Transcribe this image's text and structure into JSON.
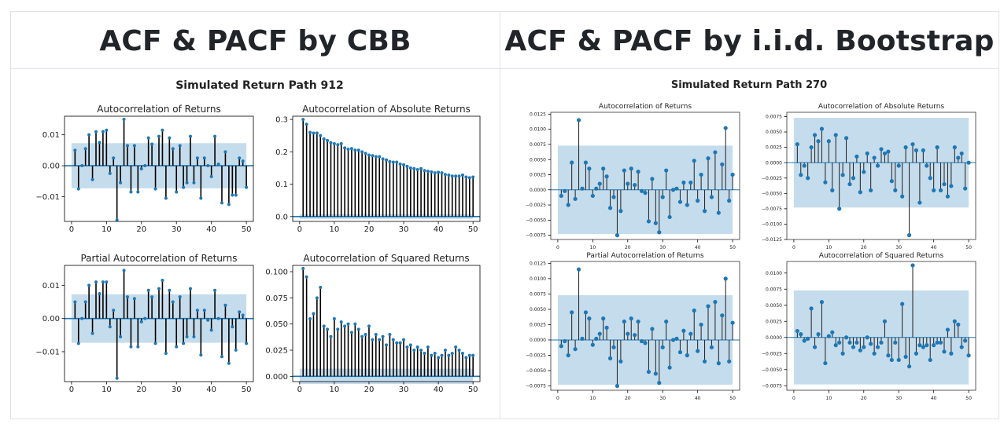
{
  "panels": [
    {
      "title": "ACF & PACF by CBB",
      "suptitle": "Simulated Return Path 912"
    },
    {
      "title": "ACF & PACF by i.i.d. Bootstrap",
      "suptitle": "Simulated Return Path 270"
    }
  ],
  "chart_data": [
    {
      "type": "stem",
      "title": "Autocorrelation of Returns",
      "xlim": [
        -2,
        52
      ],
      "ylim": [
        -0.018,
        0.016
      ],
      "xticks": [
        0,
        10,
        20,
        30,
        40,
        50
      ],
      "yticks": [
        -0.01,
        0.0,
        0.01
      ],
      "ytick_labels": [
        "−0.01",
        "0.00",
        "0.01"
      ],
      "conf_band": [
        -0.0073,
        0.0073
      ],
      "x": [
        1,
        2,
        3,
        4,
        5,
        6,
        7,
        8,
        9,
        10,
        11,
        12,
        13,
        14,
        15,
        16,
        17,
        18,
        19,
        20,
        21,
        22,
        23,
        24,
        25,
        26,
        27,
        28,
        29,
        30,
        31,
        32,
        33,
        34,
        35,
        36,
        37,
        38,
        39,
        40,
        41,
        42,
        43,
        44,
        45,
        46,
        47,
        48,
        49,
        50
      ],
      "values": [
        0.005,
        -0.0075,
        0.0,
        0.0055,
        0.01,
        -0.0045,
        0.011,
        0.0075,
        0.011,
        0.0115,
        -0.0025,
        0.0025,
        -0.0175,
        -0.0055,
        0.015,
        0.0065,
        -0.0085,
        0.0065,
        -0.0085,
        -0.001,
        0.0,
        0.009,
        0.007,
        -0.0075,
        0.0095,
        0.0115,
        -0.0105,
        0.009,
        0.0055,
        -0.0085,
        0.0065,
        -0.007,
        -0.0055,
        0.0095,
        -0.0055,
        0.0025,
        -0.0105,
        0.0025,
        0.0,
        -0.0035,
        0.0095,
        0.0005,
        -0.012,
        0.0045,
        -0.0125,
        -0.0095,
        -0.0095,
        0.0025,
        0.0015,
        -0.007
      ]
    },
    {
      "type": "stem",
      "title": "Autocorrelation of Absolute Returns",
      "xlim": [
        -2,
        52
      ],
      "ylim": [
        -0.015,
        0.31
      ],
      "xticks": [
        0,
        10,
        20,
        30,
        40,
        50
      ],
      "yticks": [
        0.0,
        0.1,
        0.2,
        0.3
      ],
      "ytick_labels": [
        "0.0",
        "0.1",
        "0.2",
        "0.3"
      ],
      "conf_band": [
        -0.0073,
        0.0073
      ],
      "x": [
        1,
        2,
        3,
        4,
        5,
        6,
        7,
        8,
        9,
        10,
        11,
        12,
        13,
        14,
        15,
        16,
        17,
        18,
        19,
        20,
        21,
        22,
        23,
        24,
        25,
        26,
        27,
        28,
        29,
        30,
        31,
        32,
        33,
        34,
        35,
        36,
        37,
        38,
        39,
        40,
        41,
        42,
        43,
        44,
        45,
        46,
        47,
        48,
        49,
        50
      ],
      "values": [
        0.3,
        0.285,
        0.26,
        0.258,
        0.258,
        0.25,
        0.24,
        0.235,
        0.228,
        0.225,
        0.222,
        0.225,
        0.212,
        0.208,
        0.21,
        0.205,
        0.205,
        0.2,
        0.195,
        0.19,
        0.188,
        0.185,
        0.185,
        0.178,
        0.175,
        0.17,
        0.168,
        0.168,
        0.162,
        0.16,
        0.155,
        0.15,
        0.148,
        0.145,
        0.148,
        0.142,
        0.14,
        0.138,
        0.135,
        0.137,
        0.135,
        0.13,
        0.128,
        0.125,
        0.125,
        0.125,
        0.128,
        0.122,
        0.12,
        0.122
      ]
    },
    {
      "type": "stem",
      "title": "Partial Autocorrelation of Returns",
      "xlim": [
        -2,
        52
      ],
      "ylim": [
        -0.019,
        0.016
      ],
      "xticks": [
        0,
        10,
        20,
        30,
        40,
        50
      ],
      "yticks": [
        -0.01,
        0.0,
        0.01
      ],
      "ytick_labels": [
        "−0.01",
        "0.00",
        "0.01"
      ],
      "conf_band": [
        -0.0073,
        0.0073
      ],
      "x": [
        1,
        2,
        3,
        4,
        5,
        6,
        7,
        8,
        9,
        10,
        11,
        12,
        13,
        14,
        15,
        16,
        17,
        18,
        19,
        20,
        21,
        22,
        23,
        24,
        25,
        26,
        27,
        28,
        29,
        30,
        31,
        32,
        33,
        34,
        35,
        36,
        37,
        38,
        39,
        40,
        41,
        42,
        43,
        44,
        45,
        46,
        47,
        48,
        49,
        50
      ],
      "values": [
        0.005,
        -0.0075,
        0.0,
        0.005,
        0.01,
        -0.0045,
        0.011,
        0.0075,
        0.011,
        0.011,
        -0.0025,
        0.0025,
        -0.018,
        -0.0055,
        0.0145,
        0.0065,
        -0.0085,
        0.006,
        -0.0085,
        -0.001,
        0.0,
        0.0085,
        0.0065,
        -0.0075,
        0.009,
        0.0115,
        -0.0105,
        0.0085,
        0.005,
        -0.0085,
        0.0065,
        -0.0075,
        -0.0055,
        0.009,
        -0.0055,
        0.0025,
        -0.011,
        0.0025,
        -0.0005,
        -0.0035,
        0.0085,
        0.0,
        -0.0115,
        0.004,
        -0.0135,
        -0.0025,
        -0.0095,
        0.002,
        0.001,
        -0.0075
      ]
    },
    {
      "type": "stem",
      "title": "Autocorrelation of Squared Returns",
      "xlim": [
        -2,
        52
      ],
      "ylim": [
        -0.005,
        0.106
      ],
      "xticks": [
        0,
        10,
        20,
        30,
        40,
        50
      ],
      "yticks": [
        0.0,
        0.025,
        0.05,
        0.075,
        0.1
      ],
      "ytick_labels": [
        "0.000",
        "0.025",
        "0.050",
        "0.075",
        "0.100"
      ],
      "conf_band": [
        -0.0073,
        0.0073
      ],
      "x": [
        1,
        2,
        3,
        4,
        5,
        6,
        7,
        8,
        9,
        10,
        11,
        12,
        13,
        14,
        15,
        16,
        17,
        18,
        19,
        20,
        21,
        22,
        23,
        24,
        25,
        26,
        27,
        28,
        29,
        30,
        31,
        32,
        33,
        34,
        35,
        36,
        37,
        38,
        39,
        40,
        41,
        42,
        43,
        44,
        45,
        46,
        47,
        48,
        49,
        50
      ],
      "values": [
        0.103,
        0.095,
        0.055,
        0.06,
        0.075,
        0.085,
        0.048,
        0.045,
        0.038,
        0.055,
        0.045,
        0.052,
        0.048,
        0.05,
        0.042,
        0.05,
        0.045,
        0.038,
        0.04,
        0.048,
        0.035,
        0.04,
        0.035,
        0.038,
        0.03,
        0.04,
        0.035,
        0.032,
        0.032,
        0.035,
        0.028,
        0.03,
        0.025,
        0.028,
        0.025,
        0.022,
        0.028,
        0.02,
        0.022,
        0.018,
        0.02,
        0.025,
        0.02,
        0.022,
        0.028,
        0.025,
        0.022,
        0.018,
        0.02,
        0.02
      ]
    },
    {
      "type": "stem",
      "title": "Autocorrelation of Returns",
      "xlim": [
        -2,
        52
      ],
      "ylim": [
        -0.0082,
        0.0128
      ],
      "xticks": [
        0,
        10,
        20,
        30,
        40,
        50
      ],
      "yticks": [
        -0.0075,
        -0.005,
        -0.0025,
        0.0,
        0.0025,
        0.005,
        0.0075,
        0.01,
        0.0125
      ],
      "ytick_labels": [
        "−0.0075",
        "−0.0050",
        "−0.0025",
        "0.0000",
        "0.0025",
        "0.0050",
        "0.0075",
        "0.0100",
        "0.0125"
      ],
      "conf_band": [
        -0.0073,
        0.0073
      ],
      "x": [
        1,
        2,
        3,
        4,
        5,
        6,
        7,
        8,
        9,
        10,
        11,
        12,
        13,
        14,
        15,
        16,
        17,
        18,
        19,
        20,
        21,
        22,
        23,
        24,
        25,
        26,
        27,
        28,
        29,
        30,
        31,
        32,
        33,
        34,
        35,
        36,
        37,
        38,
        39,
        40,
        41,
        42,
        43,
        44,
        45,
        46,
        47,
        48,
        49,
        50
      ],
      "values": [
        -0.001,
        -0.0002,
        -0.0025,
        0.0045,
        -0.0015,
        0.0115,
        0.0002,
        0.0045,
        0.0035,
        -0.001,
        0.0002,
        0.001,
        0.0035,
        0.0022,
        -0.003,
        -0.0012,
        -0.0075,
        -0.0035,
        0.0032,
        0.001,
        0.0035,
        0.0008,
        0.003,
        -0.0002,
        -0.0005,
        -0.0052,
        0.0018,
        -0.0055,
        -0.007,
        -0.0012,
        0.0032,
        -0.0045,
        0.0,
        0.0002,
        -0.002,
        0.0012,
        -0.0025,
        0.0012,
        0.0048,
        -0.0018,
        0.0025,
        -0.0035,
        0.0052,
        -0.0012,
        0.0062,
        -0.0038,
        0.0042,
        0.0102,
        -0.0018,
        0.0025
      ]
    },
    {
      "type": "stem",
      "title": "Autocorrelation of Absolute Returns",
      "xlim": [
        -2,
        52
      ],
      "ylim": [
        -0.0125,
        0.0082
      ],
      "xticks": [
        0,
        10,
        20,
        30,
        40,
        50
      ],
      "yticks": [
        -0.0125,
        -0.01,
        -0.0075,
        -0.005,
        -0.0025,
        0.0,
        0.0025,
        0.005,
        0.0075
      ],
      "ytick_labels": [
        "−0.0125",
        "−0.0100",
        "−0.0075",
        "−0.0050",
        "−0.0025",
        "0.0000",
        "0.0025",
        "0.0050",
        "0.0075"
      ],
      "conf_band": [
        -0.0073,
        0.0073
      ],
      "x": [
        1,
        2,
        3,
        4,
        5,
        6,
        7,
        8,
        9,
        10,
        11,
        12,
        13,
        14,
        15,
        16,
        17,
        18,
        19,
        20,
        21,
        22,
        23,
        24,
        25,
        26,
        27,
        28,
        29,
        30,
        31,
        32,
        33,
        34,
        35,
        36,
        37,
        38,
        39,
        40,
        41,
        42,
        43,
        44,
        45,
        46,
        47,
        48,
        49,
        50
      ],
      "values": [
        0.003,
        -0.002,
        -0.0005,
        -0.0025,
        0.0025,
        0.0045,
        0.0035,
        0.0055,
        -0.0032,
        0.0035,
        -0.0045,
        0.0045,
        -0.0075,
        -0.002,
        0.004,
        -0.0035,
        -0.0025,
        0.001,
        -0.0048,
        -0.0015,
        0.0015,
        -0.0045,
        0.0008,
        -0.0005,
        0.0022,
        0.0015,
        0.0018,
        -0.003,
        -0.0045,
        -0.0005,
        -0.0055,
        0.0025,
        -0.0118,
        0.003,
        0.002,
        -0.0065,
        0.002,
        -0.0005,
        -0.0025,
        -0.0045,
        0.0025,
        -0.0045,
        -0.0035,
        -0.0055,
        -0.0038,
        0.0025,
        0.0008,
        0.0015,
        -0.0042,
        0.0
      ]
    },
    {
      "type": "stem",
      "title": "Partial Autocorrelation of Returns",
      "xlim": [
        -2,
        52
      ],
      "ylim": [
        -0.0082,
        0.0128
      ],
      "xticks": [
        0,
        10,
        20,
        30,
        40,
        50
      ],
      "yticks": [
        -0.0075,
        -0.005,
        -0.0025,
        0.0,
        0.0025,
        0.005,
        0.0075,
        0.01,
        0.0125
      ],
      "ytick_labels": [
        "−0.0075",
        "−0.0050",
        "−0.0025",
        "0.0000",
        "0.0025",
        "0.0050",
        "0.0075",
        "0.0100",
        "0.0125"
      ],
      "conf_band": [
        -0.0073,
        0.0073
      ],
      "x": [
        1,
        2,
        3,
        4,
        5,
        6,
        7,
        8,
        9,
        10,
        11,
        12,
        13,
        14,
        15,
        16,
        17,
        18,
        19,
        20,
        21,
        22,
        23,
        24,
        25,
        26,
        27,
        28,
        29,
        30,
        31,
        32,
        33,
        34,
        35,
        36,
        37,
        38,
        39,
        40,
        41,
        42,
        43,
        44,
        45,
        46,
        47,
        48,
        49,
        50
      ],
      "values": [
        -0.001,
        -0.0002,
        -0.0025,
        0.0045,
        -0.0015,
        0.0115,
        0.0002,
        0.0045,
        0.0035,
        -0.0008,
        0.0002,
        0.001,
        0.0035,
        0.002,
        -0.003,
        -0.0012,
        -0.0075,
        -0.0035,
        0.003,
        0.001,
        0.0035,
        0.0008,
        0.003,
        -0.0002,
        -0.0005,
        -0.0052,
        0.0018,
        -0.0055,
        -0.007,
        -0.0012,
        0.003,
        -0.0045,
        0.0,
        0.0002,
        -0.002,
        0.0015,
        -0.0025,
        0.001,
        0.0048,
        -0.0018,
        0.0025,
        -0.0035,
        0.0055,
        -0.0012,
        0.0062,
        -0.0038,
        0.004,
        0.01,
        -0.0035,
        0.0028
      ]
    },
    {
      "type": "stem",
      "title": "Autocorrelation of Squared Returns",
      "xlim": [
        -2,
        52
      ],
      "ylim": [
        -0.0082,
        0.0118
      ],
      "xticks": [
        0,
        10,
        20,
        30,
        40,
        50
      ],
      "yticks": [
        -0.0075,
        -0.005,
        -0.0025,
        0.0,
        0.0025,
        0.005,
        0.0075,
        0.01
      ],
      "ytick_labels": [
        "−0.0075",
        "−0.0050",
        "−0.0025",
        "0.0000",
        "0.0025",
        "0.0050",
        "0.0075",
        "0.0100"
      ],
      "conf_band": [
        -0.0073,
        0.0073
      ],
      "x": [
        1,
        2,
        3,
        4,
        5,
        6,
        7,
        8,
        9,
        10,
        11,
        12,
        13,
        14,
        15,
        16,
        17,
        18,
        19,
        20,
        21,
        22,
        23,
        24,
        25,
        26,
        27,
        28,
        29,
        30,
        31,
        32,
        33,
        34,
        35,
        36,
        37,
        38,
        39,
        40,
        41,
        42,
        43,
        44,
        45,
        46,
        47,
        48,
        49,
        50
      ],
      "values": [
        0.001,
        0.0005,
        -0.0005,
        -0.0002,
        0.0045,
        -0.0015,
        0.0005,
        0.0055,
        -0.004,
        0.0002,
        0.0008,
        -0.0012,
        -0.0008,
        -0.0025,
        0.0,
        -0.0008,
        -0.0015,
        -0.0008,
        -0.002,
        -0.0015,
        0.0,
        -0.001,
        -0.0025,
        -0.0015,
        -0.0008,
        0.0025,
        -0.0028,
        -0.0035,
        -0.0008,
        -0.0035,
        0.0052,
        -0.003,
        -0.0045,
        0.0112,
        -0.0025,
        -0.0012,
        -0.0015,
        -0.0012,
        -0.0035,
        -0.0012,
        -0.0008,
        -0.0008,
        -0.0022,
        0.0012,
        -0.0025,
        0.0025,
        0.002,
        -0.0015,
        -0.0005,
        -0.0028
      ]
    }
  ]
}
